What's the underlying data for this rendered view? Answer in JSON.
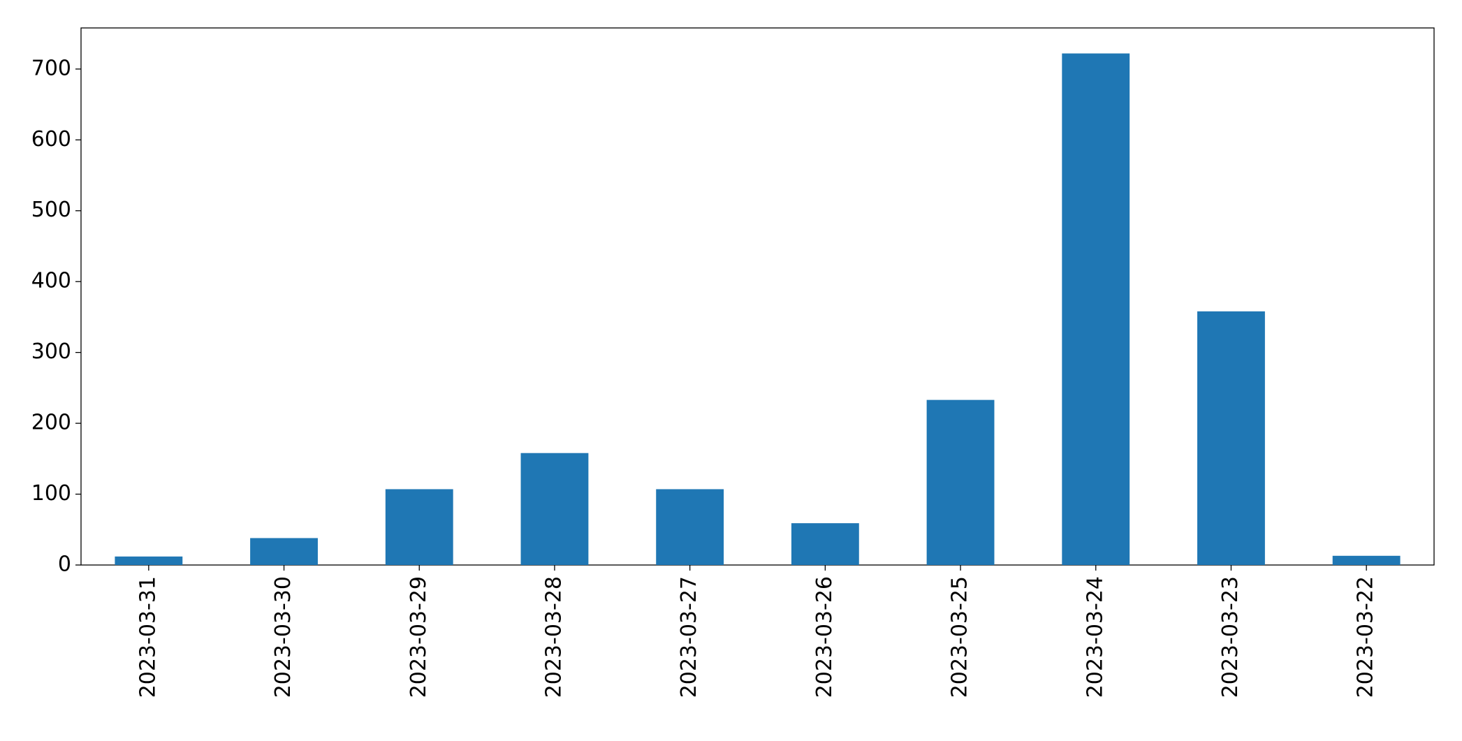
{
  "chart_data": {
    "type": "bar",
    "categories": [
      "2023-03-31",
      "2023-03-30",
      "2023-03-29",
      "2023-03-28",
      "2023-03-27",
      "2023-03-26",
      "2023-03-25",
      "2023-03-24",
      "2023-03-23",
      "2023-03-22"
    ],
    "values": [
      12,
      38,
      107,
      158,
      107,
      59,
      233,
      722,
      358,
      13
    ],
    "color": "#1f77b4",
    "ylim": [
      0,
      758
    ],
    "yticks": [
      0,
      100,
      200,
      300,
      400,
      500,
      600,
      700
    ],
    "grid": false
  }
}
